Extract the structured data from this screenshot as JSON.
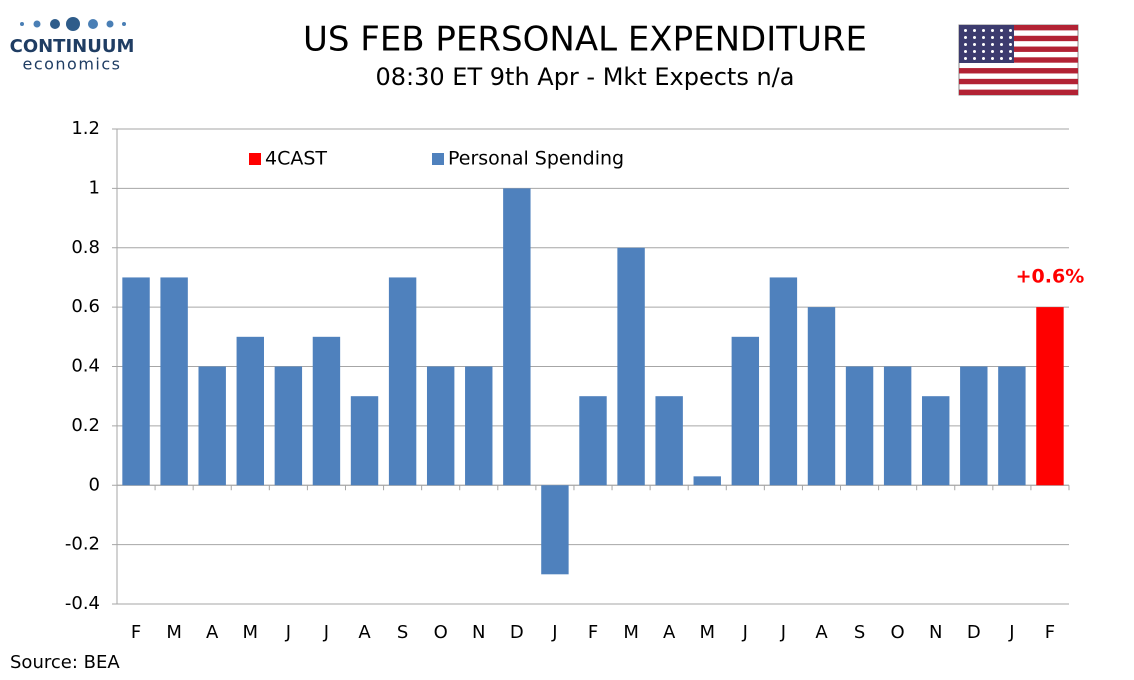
{
  "logo": {
    "name": "CONTINUUM",
    "tagline": "economics"
  },
  "chart_data": {
    "type": "bar",
    "title": "US FEB PERSONAL EXPENDITURE",
    "subtitle": "08:30 ET 9th Apr - Mkt Expects n/a",
    "source": "Source: BEA",
    "categories": [
      "F",
      "M",
      "A",
      "M",
      "J",
      "J",
      "A",
      "S",
      "O",
      "N",
      "D",
      "J",
      "F",
      "M",
      "A",
      "M",
      "J",
      "J",
      "A",
      "S",
      "O",
      "N",
      "D",
      "J",
      "F"
    ],
    "series": [
      {
        "name": "4CAST",
        "color": "#ff0000",
        "values": [
          null,
          null,
          null,
          null,
          null,
          null,
          null,
          null,
          null,
          null,
          null,
          null,
          null,
          null,
          null,
          null,
          null,
          null,
          null,
          null,
          null,
          null,
          null,
          null,
          0.6
        ],
        "value_labels": [
          null,
          null,
          null,
          null,
          null,
          null,
          null,
          null,
          null,
          null,
          null,
          null,
          null,
          null,
          null,
          null,
          null,
          null,
          null,
          null,
          null,
          null,
          null,
          null,
          "+0.6%"
        ]
      },
      {
        "name": "Personal Spending",
        "color": "#4f81bd",
        "values": [
          0.7,
          0.7,
          0.4,
          0.5,
          0.4,
          0.5,
          0.3,
          0.7,
          0.4,
          0.4,
          1.0,
          -0.3,
          0.3,
          0.8,
          0.3,
          0.03,
          0.5,
          0.7,
          0.6,
          0.4,
          0.4,
          0.3,
          0.4,
          0.4,
          null
        ]
      }
    ],
    "ylim": [
      -0.4,
      1.2
    ],
    "yticks": [
      -0.4,
      -0.2,
      0,
      0.2,
      0.4,
      0.6,
      0.8,
      1,
      1.2
    ],
    "grid": true,
    "legend": "top"
  }
}
